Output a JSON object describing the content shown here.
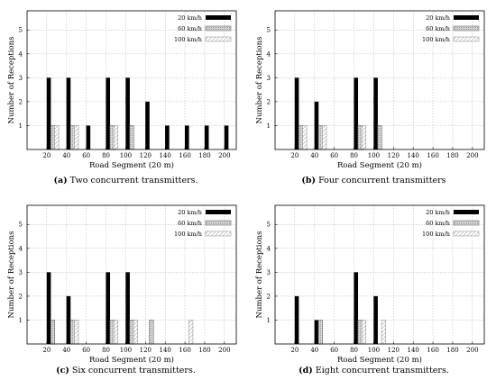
{
  "chart_data": [
    {
      "type": "bar",
      "panel_label": "(a)",
      "caption": "Two concurrent transmitters.",
      "xlabel": "Road Segment (20 m)",
      "ylabel": "Number of Receptions",
      "categories": [
        "20",
        "40",
        "60",
        "80",
        "100",
        "120",
        "140",
        "160",
        "180",
        "200"
      ],
      "yticks": [
        1,
        2,
        3,
        4,
        5
      ],
      "ylim": [
        0,
        5.8
      ],
      "grid": true,
      "legend_position": "top-right",
      "series": [
        {
          "name": "20 km/h",
          "points": [
            [
              11,
              3
            ],
            [
              21,
              3
            ],
            [
              31,
              1
            ],
            [
              41,
              3
            ],
            [
              51,
              3
            ],
            [
              61,
              2
            ],
            [
              71,
              1
            ],
            [
              81,
              1
            ],
            [
              91,
              1
            ],
            [
              101,
              1
            ]
          ]
        },
        {
          "name": "60 km/h",
          "points": [
            [
              13,
              1
            ],
            [
              23,
              1
            ],
            [
              43,
              1
            ],
            [
              53,
              1
            ]
          ]
        },
        {
          "name": "100 km/h",
          "points": [
            [
              15,
              1
            ],
            [
              25,
              1
            ],
            [
              45,
              1
            ]
          ]
        }
      ]
    },
    {
      "type": "bar",
      "panel_label": "(b)",
      "caption": "Four concurrent transmitters",
      "xlabel": "Road Segment (20 m)",
      "ylabel": "Number of Receptions",
      "categories": [
        "20",
        "40",
        "60",
        "80",
        "100",
        "120",
        "140",
        "160",
        "180",
        "200"
      ],
      "yticks": [
        1,
        2,
        3,
        4,
        5
      ],
      "ylim": [
        0,
        5.8
      ],
      "grid": true,
      "legend_position": "top-right",
      "series": [
        {
          "name": "20 km/h",
          "points": [
            [
              11,
              3
            ],
            [
              21,
              2
            ],
            [
              41,
              3
            ],
            [
              51,
              3
            ]
          ]
        },
        {
          "name": "60 km/h",
          "points": [
            [
              13,
              1
            ],
            [
              23,
              1
            ],
            [
              43,
              1
            ],
            [
              53,
              1
            ]
          ]
        },
        {
          "name": "100 km/h",
          "points": [
            [
              15,
              1
            ],
            [
              25,
              1
            ],
            [
              45,
              1
            ]
          ]
        }
      ]
    },
    {
      "type": "bar",
      "panel_label": "(c)",
      "caption": "Six concurrent transmitters.",
      "xlabel": "Road Segment (20 m)",
      "ylabel": "Number of Receptions",
      "categories": [
        "20",
        "40",
        "60",
        "80",
        "100",
        "120",
        "140",
        "160",
        "180",
        "200"
      ],
      "yticks": [
        1,
        2,
        3,
        4,
        5
      ],
      "ylim": [
        0,
        5.8
      ],
      "grid": true,
      "legend_position": "top-right",
      "series": [
        {
          "name": "20 km/h",
          "points": [
            [
              11,
              3
            ],
            [
              21,
              2
            ],
            [
              41,
              3
            ],
            [
              51,
              3
            ]
          ]
        },
        {
          "name": "60 km/h",
          "points": [
            [
              13,
              1
            ],
            [
              23,
              1
            ],
            [
              43,
              1
            ],
            [
              53,
              1
            ],
            [
              63,
              1
            ]
          ]
        },
        {
          "name": "100 km/h",
          "points": [
            [
              25,
              1
            ],
            [
              45,
              1
            ],
            [
              55,
              1
            ],
            [
              83,
              1
            ]
          ]
        }
      ]
    },
    {
      "type": "bar",
      "panel_label": "(d)",
      "caption": "Eight concurrent transmitters.",
      "xlabel": "Road Segment (20 m)",
      "ylabel": "Number of Receptions",
      "categories": [
        "20",
        "40",
        "60",
        "80",
        "100",
        "120",
        "140",
        "160",
        "180",
        "200"
      ],
      "yticks": [
        1,
        2,
        3,
        4,
        5
      ],
      "ylim": [
        0,
        5.8
      ],
      "grid": true,
      "legend_position": "top-right",
      "series": [
        {
          "name": "20 km/h",
          "points": [
            [
              11,
              2
            ],
            [
              21,
              1
            ],
            [
              41,
              3
            ],
            [
              51,
              2
            ]
          ]
        },
        {
          "name": "60 km/h",
          "points": [
            [
              23,
              1
            ],
            [
              43,
              1
            ]
          ]
        },
        {
          "name": "100 km/h",
          "points": [
            [
              45,
              1
            ],
            [
              55,
              1
            ]
          ]
        }
      ]
    }
  ],
  "style": {
    "series_fill": [
      "#000000",
      "#cccccc",
      "#ffffff"
    ],
    "series_pattern": [
      "solid",
      "dense-gray",
      "diagonal-hatch"
    ],
    "grid_color": "#b0b0b0"
  }
}
